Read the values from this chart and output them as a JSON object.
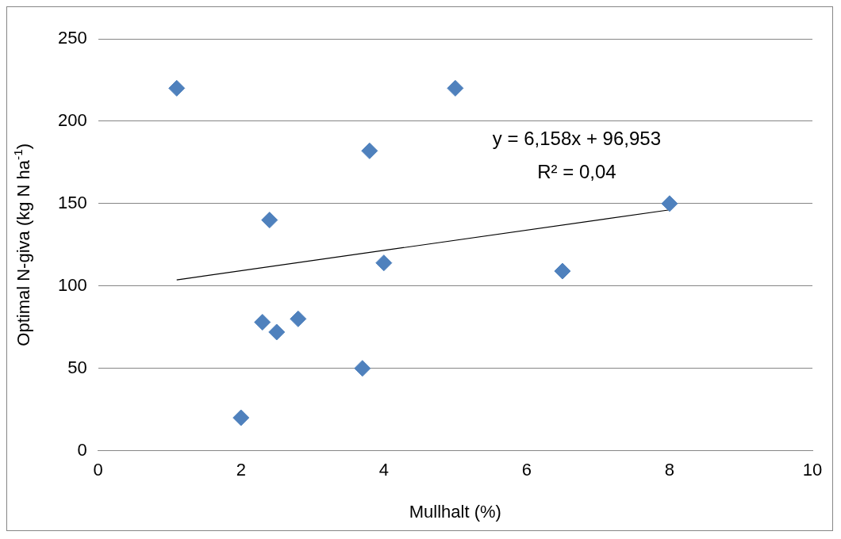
{
  "chart_data": {
    "type": "scatter",
    "xlabel": "Mullhalt (%)",
    "ylabel": "Optimal N-giva (kg N ha$^{-1}$)",
    "series": [
      {
        "color": "#4f81bd",
        "marker": "diamond",
        "x": [
          1.1,
          5,
          3.8,
          2.4,
          8,
          4,
          6.5,
          2.3,
          2.5,
          2.8,
          3.7,
          2
        ],
        "values": [
          220,
          220,
          182,
          140,
          150,
          114,
          109,
          78,
          72,
          80,
          50,
          20
        ]
      },
      {
        "type": "line",
        "color": "#000000",
        "x": [
          1.1,
          8
        ],
        "values": [
          103.7,
          146.2
        ]
      }
    ],
    "xlim": [
      0,
      10
    ],
    "xticks": [
      0,
      2,
      4,
      6,
      8,
      10
    ],
    "ylim": [
      0,
      250
    ],
    "yticks": [
      0,
      50,
      100,
      150,
      200,
      250
    ],
    "grid": "y",
    "legend": false,
    "annotations": [
      "y = 6,158x + 96,953",
      "R² = 0,04"
    ]
  }
}
